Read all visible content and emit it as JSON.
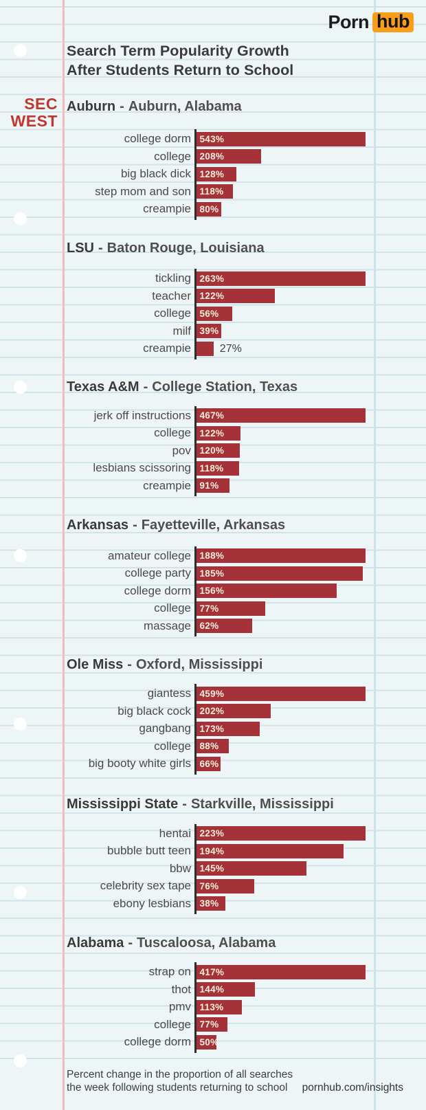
{
  "logo": {
    "word": "Porn",
    "box": "hub"
  },
  "header": {
    "title_line1": "Search Term Popularity Growth",
    "title_line2": "After Students Return to School"
  },
  "conference_badge": {
    "line1": "SEC",
    "line2": "WEST"
  },
  "chart_data": {
    "type": "bar",
    "orientation": "horizontal",
    "unit": "%",
    "bar_color": "#a53239",
    "axis_color": "#2e2e2e",
    "note": "each section's bars are scaled to that section's maximum value",
    "sections": [
      {
        "school": "Auburn",
        "separator": "-",
        "location": "Auburn, Alabama",
        "terms": [
          {
            "term": "college dorm",
            "value": 543,
            "label": "543%",
            "label_inside": true
          },
          {
            "term": "college",
            "value": 208,
            "label": "208%",
            "label_inside": true
          },
          {
            "term": "big black dick",
            "value": 128,
            "label": "128%",
            "label_inside": true
          },
          {
            "term": "step mom and son",
            "value": 118,
            "label": "118%",
            "label_inside": true
          },
          {
            "term": "creampie",
            "value": 80,
            "label": "80%",
            "label_inside": true
          }
        ]
      },
      {
        "school": "LSU",
        "separator": "-",
        "location": "Baton Rouge, Louisiana",
        "terms": [
          {
            "term": "tickling",
            "value": 263,
            "label": "263%",
            "label_inside": true
          },
          {
            "term": "teacher",
            "value": 122,
            "label": "122%",
            "label_inside": true
          },
          {
            "term": "college",
            "value": 56,
            "label": "56%",
            "label_inside": true
          },
          {
            "term": "milf",
            "value": 39,
            "label": "39%",
            "label_inside": true
          },
          {
            "term": "creampie",
            "value": 27,
            "label": "27%",
            "label_inside": false
          }
        ]
      },
      {
        "school": "Texas A&M",
        "separator": "-",
        "location": "College Station, Texas",
        "terms": [
          {
            "term": "jerk off instructions",
            "value": 467,
            "label": "467%",
            "label_inside": true
          },
          {
            "term": "college",
            "value": 122,
            "label": "122%",
            "label_inside": true
          },
          {
            "term": "pov",
            "value": 120,
            "label": "120%",
            "label_inside": true
          },
          {
            "term": "lesbians scissoring",
            "value": 118,
            "label": "118%",
            "label_inside": true
          },
          {
            "term": "creampie",
            "value": 91,
            "label": "91%",
            "label_inside": true
          }
        ]
      },
      {
        "school": "Arkansas",
        "separator": "-",
        "location": "Fayetteville, Arkansas",
        "terms": [
          {
            "term": "amateur college",
            "value": 188,
            "label": "188%",
            "label_inside": true
          },
          {
            "term": "college party",
            "value": 185,
            "label": "185%",
            "label_inside": true
          },
          {
            "term": "college dorm",
            "value": 156,
            "label": "156%",
            "label_inside": true
          },
          {
            "term": "college",
            "value": 77,
            "label": "77%",
            "label_inside": true
          },
          {
            "term": "massage",
            "value": 62,
            "label": "62%",
            "label_inside": true
          }
        ]
      },
      {
        "school": "Ole Miss",
        "separator": "-",
        "location": "Oxford, Mississippi",
        "terms": [
          {
            "term": "giantess",
            "value": 459,
            "label": "459%",
            "label_inside": true
          },
          {
            "term": "big black cock",
            "value": 202,
            "label": "202%",
            "label_inside": true
          },
          {
            "term": "gangbang",
            "value": 173,
            "label": "173%",
            "label_inside": true
          },
          {
            "term": "college",
            "value": 88,
            "label": "88%",
            "label_inside": true
          },
          {
            "term": "big booty white girls",
            "value": 66,
            "label": "66%",
            "label_inside": true
          }
        ]
      },
      {
        "school": "Mississippi State",
        "separator": "-",
        "location": "Starkville, Mississippi",
        "terms": [
          {
            "term": "hentai",
            "value": 223,
            "label": "223%",
            "label_inside": true
          },
          {
            "term": "bubble butt teen",
            "value": 194,
            "label": "194%",
            "label_inside": true
          },
          {
            "term": "bbw",
            "value": 145,
            "label": "145%",
            "label_inside": true
          },
          {
            "term": "celebrity sex tape",
            "value": 76,
            "label": "76%",
            "label_inside": true
          },
          {
            "term": "ebony lesbians",
            "value": 38,
            "label": "38%",
            "label_inside": true
          }
        ]
      },
      {
        "school": "Alabama",
        "separator": "-",
        "location": "Tuscaloosa, Alabama",
        "terms": [
          {
            "term": "strap on",
            "value": 417,
            "label": "417%",
            "label_inside": true
          },
          {
            "term": "thot",
            "value": 144,
            "label": "144%",
            "label_inside": true
          },
          {
            "term": "pmv",
            "value": 113,
            "label": "113%",
            "label_inside": true
          },
          {
            "term": "college",
            "value": 77,
            "label": "77%",
            "label_inside": true
          },
          {
            "term": "college dorm",
            "value": 50,
            "label": "50%",
            "label_inside": true
          }
        ]
      }
    ]
  },
  "footer": {
    "note_line1": "Percent change in the proportion of all searches",
    "note_line2": "the week following students returning to school",
    "site": "pornhub.com/insights"
  },
  "colors": {
    "background": "#eef5f7",
    "ruled_line": "#cfe3e9",
    "margin_line_pink": "#f3bcb9",
    "bar_red": "#a53239",
    "badge_red": "#bf382f",
    "logo_orange": "#f89e1b"
  }
}
